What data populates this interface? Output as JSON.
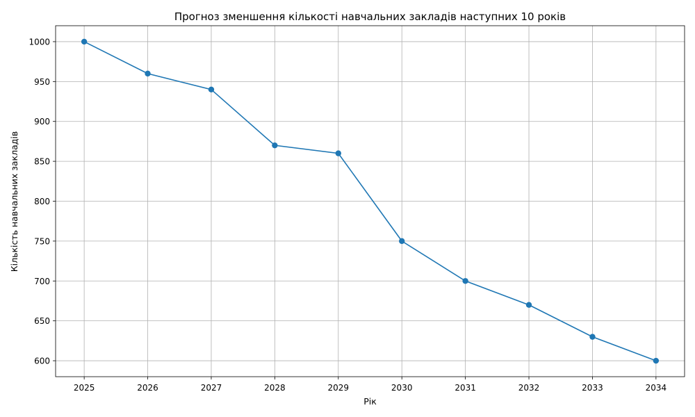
{
  "chart_data": {
    "type": "line",
    "title": "Прогноз зменшення кількості навчальних закладів наступних 10 років",
    "xlabel": "Рік",
    "ylabel": "Кількість навчальних закладів",
    "x": [
      2025,
      2026,
      2027,
      2028,
      2029,
      2030,
      2031,
      2032,
      2033,
      2034
    ],
    "xticks": [
      "2025",
      "2026",
      "2027",
      "2028",
      "2029",
      "2030",
      "2031",
      "2032",
      "2033",
      "2034"
    ],
    "yticks": [
      600,
      650,
      700,
      750,
      800,
      850,
      900,
      950,
      1000
    ],
    "ylim": [
      580,
      1020
    ],
    "xlim": [
      2024.55,
      2034.45
    ],
    "grid": true,
    "series": [
      {
        "values": [
          1000,
          960,
          940,
          870,
          860,
          750,
          700,
          670,
          630,
          600
        ],
        "color": "#1f77b4",
        "marker": "circle"
      }
    ]
  }
}
